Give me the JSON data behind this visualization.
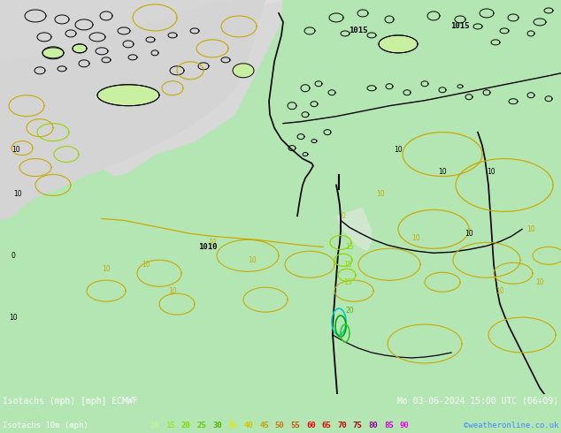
{
  "title_left": "Isotachs (mph) [mph] ECMWF",
  "title_right": "Mo 03-06-2024 15:00 UTC (06+09)",
  "legend_label": "Isotachs 10m (mph)",
  "legend_values": [
    "10",
    "15",
    "20",
    "25",
    "30",
    "35",
    "40",
    "45",
    "50",
    "55",
    "60",
    "65",
    "70",
    "75",
    "80",
    "85",
    "90"
  ],
  "legend_colors": [
    "#c8f096",
    "#96e632",
    "#78dc00",
    "#64c800",
    "#50b400",
    "#e6e600",
    "#d2c800",
    "#c8a000",
    "#c87800",
    "#c85000",
    "#ff0000",
    "#e60000",
    "#c80000",
    "#aa0000",
    "#960096",
    "#c800c8",
    "#ff00ff"
  ],
  "map_bg": "#b4e6b4",
  "sea_color": "#d8d8d8",
  "land_green": "#b4e6b4",
  "land_light": "#d0f0b0",
  "bottom_bg": "#000000",
  "credit": "©weatheronline.co.uk",
  "figsize": [
    6.34,
    4.9
  ],
  "dpi": 100
}
